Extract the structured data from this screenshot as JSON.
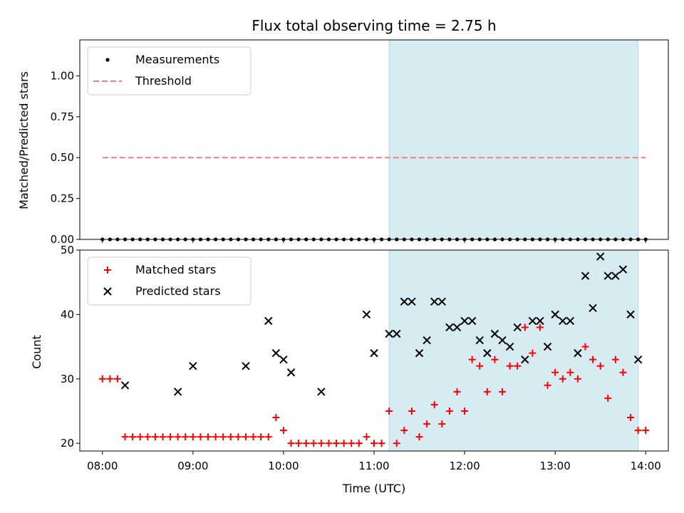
{
  "chart_data": [
    {
      "type": "scatter",
      "title": "Flux total observing time = 2.75 h",
      "xlabel": "",
      "ylabel": "Matched/Predicted stars",
      "xlim": [
        "07:45",
        "14:15"
      ],
      "ylim": [
        0,
        1.22
      ],
      "yticks": [
        "0.00",
        "0.25",
        "0.50",
        "0.75",
        "1.00"
      ],
      "shaded_interval": [
        "11:10",
        "13:55"
      ],
      "legend": {
        "placement": "upper-left"
      },
      "series": [
        {
          "name": "Measurements",
          "marker": "dot",
          "color": "#000000",
          "x": [
            "08:00",
            "08:05",
            "08:10",
            "08:15",
            "08:20",
            "08:25",
            "08:30",
            "08:35",
            "08:40",
            "08:45",
            "08:50",
            "08:55",
            "09:00",
            "09:05",
            "09:10",
            "09:15",
            "09:20",
            "09:25",
            "09:30",
            "09:35",
            "09:40",
            "09:45",
            "09:50",
            "09:55",
            "10:00",
            "10:05",
            "10:10",
            "10:15",
            "10:20",
            "10:25",
            "10:30",
            "10:35",
            "10:40",
            "10:45",
            "10:50",
            "10:55",
            "11:00",
            "11:05",
            "11:10",
            "11:15",
            "11:20",
            "11:25",
            "11:30",
            "11:35",
            "11:40",
            "11:45",
            "11:50",
            "11:55",
            "12:00",
            "12:05",
            "12:10",
            "12:15",
            "12:20",
            "12:25",
            "12:30",
            "12:35",
            "12:40",
            "12:45",
            "12:50",
            "12:55",
            "13:00",
            "13:05",
            "13:10",
            "13:15",
            "13:20",
            "13:25",
            "13:30",
            "13:35",
            "13:40",
            "13:45",
            "13:50",
            "13:55",
            "14:00"
          ],
          "y": [
            0,
            0,
            0,
            0,
            0,
            0,
            0,
            0,
            0,
            0,
            0,
            0,
            0,
            0,
            0,
            0,
            0,
            0,
            0,
            0,
            0,
            0,
            0,
            0,
            0,
            0,
            0,
            0,
            0,
            0,
            0,
            0,
            0,
            0,
            0,
            0,
            0,
            0,
            0,
            0,
            0,
            0,
            0,
            0,
            0,
            0,
            0,
            0,
            0,
            0,
            0,
            0,
            0,
            0,
            0,
            0,
            0,
            0,
            0,
            0,
            0,
            0,
            0,
            0,
            0,
            0,
            0,
            0,
            0,
            0,
            0,
            0,
            0
          ]
        },
        {
          "name": "Threshold",
          "marker": "dashed-line",
          "color": "#f08080",
          "x": [
            "08:00",
            "14:00"
          ],
          "y": [
            0.5,
            0.5
          ]
        }
      ]
    },
    {
      "type": "scatter",
      "title": "",
      "xlabel": "Time (UTC)",
      "ylabel": "Count",
      "xlim": [
        "07:45",
        "14:15"
      ],
      "ylim": [
        18.8,
        50
      ],
      "yticks": [
        "20",
        "30",
        "40",
        "50"
      ],
      "xticks": [
        "08:00",
        "09:00",
        "10:00",
        "11:00",
        "12:00",
        "13:00",
        "14:00"
      ],
      "shaded_interval": [
        "11:10",
        "13:55"
      ],
      "legend": {
        "placement": "upper-left"
      },
      "series": [
        {
          "name": "Matched stars",
          "marker": "plus",
          "color": "#ff0000",
          "x": [
            "08:00",
            "08:05",
            "08:10",
            "08:15",
            "08:20",
            "08:25",
            "08:30",
            "08:35",
            "08:40",
            "08:45",
            "08:50",
            "08:55",
            "09:00",
            "09:05",
            "09:10",
            "09:15",
            "09:20",
            "09:25",
            "09:30",
            "09:35",
            "09:40",
            "09:45",
            "09:50",
            "09:55",
            "10:00",
            "10:05",
            "10:10",
            "10:15",
            "10:20",
            "10:25",
            "10:30",
            "10:35",
            "10:40",
            "10:45",
            "10:50",
            "10:55",
            "11:00",
            "11:05",
            "11:10",
            "11:15",
            "11:20",
            "11:25",
            "11:30",
            "11:35",
            "11:40",
            "11:45",
            "11:50",
            "11:55",
            "12:00",
            "12:05",
            "12:10",
            "12:15",
            "12:20",
            "12:25",
            "12:30",
            "12:35",
            "12:40",
            "12:45",
            "12:50",
            "12:55",
            "13:00",
            "13:05",
            "13:10",
            "13:15",
            "13:20",
            "13:25",
            "13:30",
            "13:35",
            "13:40",
            "13:45",
            "13:50",
            "13:55",
            "14:00"
          ],
          "y": [
            30,
            30,
            30,
            21,
            21,
            21,
            21,
            21,
            21,
            21,
            21,
            21,
            21,
            21,
            21,
            21,
            21,
            21,
            21,
            21,
            21,
            21,
            21,
            24,
            22,
            20,
            20,
            20,
            20,
            20,
            20,
            20,
            20,
            20,
            20,
            21,
            20,
            20,
            25,
            20,
            22,
            25,
            21,
            23,
            26,
            23,
            25,
            28,
            25,
            33,
            32,
            28,
            33,
            28,
            32,
            32,
            38,
            34,
            38,
            29,
            31,
            30,
            31,
            30,
            35,
            33,
            32,
            27,
            33,
            31,
            24,
            22,
            22
          ]
        },
        {
          "name": "Predicted stars",
          "marker": "cross",
          "color": "#000000",
          "x": [
            "08:15",
            "08:50",
            "09:00",
            "09:35",
            "09:50",
            "09:55",
            "10:00",
            "10:05",
            "10:25",
            "10:55",
            "11:00",
            "11:10",
            "11:15",
            "11:20",
            "11:25",
            "11:30",
            "11:35",
            "11:40",
            "11:45",
            "11:50",
            "11:55",
            "12:00",
            "12:05",
            "12:10",
            "12:15",
            "12:20",
            "12:25",
            "12:30",
            "12:35",
            "12:40",
            "12:45",
            "12:50",
            "12:55",
            "13:00",
            "13:05",
            "13:10",
            "13:15",
            "13:20",
            "13:25",
            "13:30",
            "13:35",
            "13:40",
            "13:45",
            "13:50",
            "13:55"
          ],
          "y": [
            29,
            28,
            32,
            32,
            39,
            34,
            33,
            31,
            28,
            40,
            34,
            37,
            37,
            42,
            42,
            34,
            36,
            42,
            42,
            38,
            38,
            39,
            39,
            36,
            34,
            37,
            36,
            35,
            38,
            33,
            39,
            39,
            35,
            40,
            39,
            39,
            34,
            46,
            41,
            49,
            46,
            46,
            47,
            40,
            33
          ]
        }
      ]
    }
  ]
}
